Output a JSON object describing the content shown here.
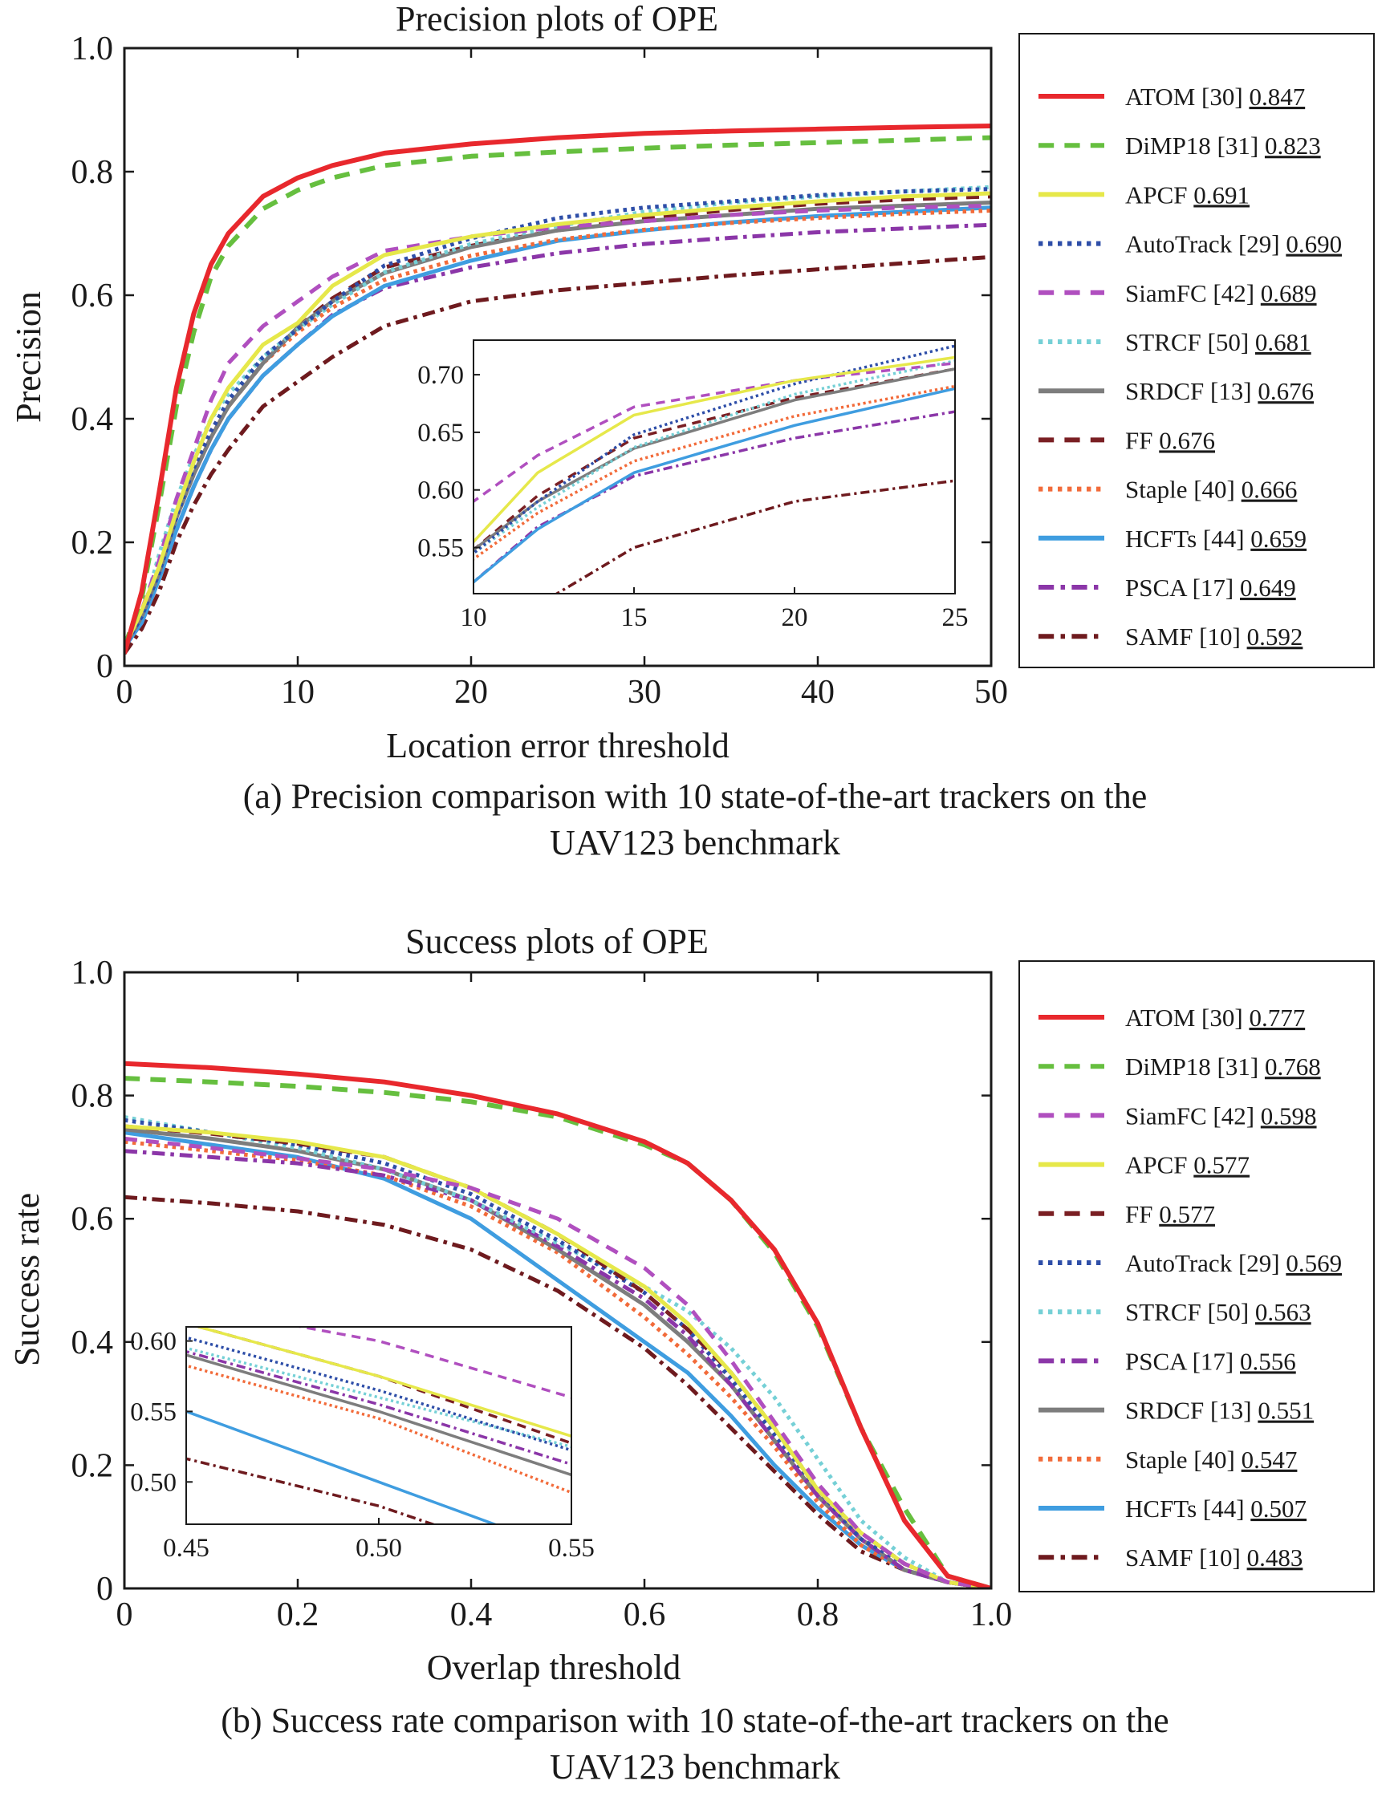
{
  "captions": [
    {
      "line1": "(a)  Precision comparison with 10 state-of-the-art trackers on the",
      "line2": "UAV123 benchmark"
    },
    {
      "line1": "(b)  Success rate comparison with 10 state-of-the-art trackers on the",
      "line2": "UAV123 benchmark"
    }
  ],
  "trackers": {
    "ATOM": {
      "color": "#e8282d",
      "dash": "solid"
    },
    "DiMP18": {
      "color": "#66bf3f",
      "dash": "dashed"
    },
    "APCF": {
      "color": "#e6e84a",
      "dash": "solid"
    },
    "AutoTrack": {
      "color": "#2e4ea8",
      "dash": "dotted"
    },
    "SiamFC": {
      "color": "#b04fbf",
      "dash": "dashed"
    },
    "STRCF": {
      "color": "#75d0d6",
      "dash": "dotted"
    },
    "SRDCF": {
      "color": "#7d7d7d",
      "dash": "solid"
    },
    "FF": {
      "color": "#7a1f23",
      "dash": "dashed"
    },
    "Staple": {
      "color": "#f26b3a",
      "dash": "dotted"
    },
    "HCFTs": {
      "color": "#3f9de0",
      "dash": "solid"
    },
    "PSCA": {
      "color": "#8b36a8",
      "dash": "dashdot"
    },
    "SAMF": {
      "color": "#6e1a1e",
      "dash": "dashdot"
    }
  },
  "chart_data": [
    {
      "type": "line",
      "title": "Precision plots of OPE",
      "xlabel": "Location error threshold",
      "ylabel": "Precision",
      "xlim": [
        0,
        50
      ],
      "ylim": [
        0,
        1.0
      ],
      "xticks": [
        "0",
        "10",
        "20",
        "30",
        "40",
        "50"
      ],
      "yticks": [
        "0",
        "0.2",
        "0.4",
        "0.6",
        "0.8",
        "1.0"
      ],
      "grid": false,
      "legend_position": "right-outside",
      "x": [
        0,
        1,
        2,
        3,
        4,
        5,
        6,
        8,
        10,
        12,
        15,
        20,
        25,
        30,
        35,
        40,
        45,
        50
      ],
      "series": [
        {
          "key": "ATOM",
          "label": "ATOM [30]",
          "score": "0.847",
          "values": [
            0.02,
            0.12,
            0.28,
            0.45,
            0.57,
            0.65,
            0.7,
            0.76,
            0.79,
            0.81,
            0.83,
            0.845,
            0.855,
            0.862,
            0.866,
            0.869,
            0.872,
            0.874
          ]
        },
        {
          "key": "DiMP18",
          "label": "DiMP18 [31]",
          "score": "0.823",
          "values": [
            0.03,
            0.11,
            0.26,
            0.42,
            0.54,
            0.63,
            0.68,
            0.74,
            0.77,
            0.79,
            0.81,
            0.825,
            0.832,
            0.838,
            0.843,
            0.847,
            0.851,
            0.855
          ]
        },
        {
          "key": "APCF",
          "label": "APCF",
          "score": "0.691",
          "values": [
            0.03,
            0.09,
            0.16,
            0.25,
            0.33,
            0.4,
            0.45,
            0.52,
            0.555,
            0.615,
            0.665,
            0.695,
            0.715,
            0.73,
            0.742,
            0.752,
            0.76,
            0.765
          ]
        },
        {
          "key": "AutoTrack",
          "label": "AutoTrack [29]",
          "score": "0.690",
          "values": [
            0.03,
            0.08,
            0.15,
            0.24,
            0.32,
            0.38,
            0.43,
            0.5,
            0.545,
            0.59,
            0.648,
            0.692,
            0.725,
            0.742,
            0.752,
            0.762,
            0.768,
            0.772
          ]
        },
        {
          "key": "SiamFC",
          "label": "SiamFC [42]",
          "score": "0.689",
          "values": [
            0.03,
            0.09,
            0.17,
            0.27,
            0.35,
            0.43,
            0.49,
            0.55,
            0.59,
            0.63,
            0.672,
            0.695,
            0.71,
            0.72,
            0.73,
            0.737,
            0.742,
            0.745
          ]
        },
        {
          "key": "STRCF",
          "label": "STRCF [50]",
          "score": "0.681",
          "values": [
            0.03,
            0.08,
            0.18,
            0.27,
            0.34,
            0.4,
            0.44,
            0.5,
            0.545,
            0.585,
            0.637,
            0.683,
            0.712,
            0.735,
            0.75,
            0.76,
            0.768,
            0.775
          ]
        },
        {
          "key": "SRDCF",
          "label": "SRDCF [13]",
          "score": "0.676",
          "values": [
            0.03,
            0.08,
            0.15,
            0.24,
            0.31,
            0.37,
            0.42,
            0.49,
            0.548,
            0.59,
            0.636,
            0.678,
            0.705,
            0.72,
            0.73,
            0.74,
            0.745,
            0.75
          ]
        },
        {
          "key": "FF",
          "label": "FF",
          "score": "0.676",
          "values": [
            0.03,
            0.08,
            0.15,
            0.24,
            0.31,
            0.37,
            0.42,
            0.49,
            0.548,
            0.595,
            0.645,
            0.68,
            0.705,
            0.725,
            0.738,
            0.748,
            0.755,
            0.76
          ]
        },
        {
          "key": "Staple",
          "label": "Staple [40]",
          "score": "0.666",
          "values": [
            0.03,
            0.08,
            0.16,
            0.25,
            0.32,
            0.38,
            0.42,
            0.49,
            0.54,
            0.58,
            0.625,
            0.664,
            0.69,
            0.706,
            0.717,
            0.725,
            0.732,
            0.737
          ]
        },
        {
          "key": "HCFTs",
          "label": "HCFTs [44]",
          "score": "0.659",
          "values": [
            0.03,
            0.07,
            0.14,
            0.22,
            0.29,
            0.35,
            0.4,
            0.47,
            0.52,
            0.566,
            0.615,
            0.656,
            0.688,
            0.705,
            0.718,
            0.728,
            0.735,
            0.742
          ]
        },
        {
          "key": "PSCA",
          "label": "PSCA [17]",
          "score": "0.649",
          "values": [
            0.03,
            0.07,
            0.14,
            0.22,
            0.29,
            0.35,
            0.4,
            0.47,
            0.52,
            0.568,
            0.612,
            0.645,
            0.668,
            0.683,
            0.693,
            0.702,
            0.708,
            0.714
          ]
        },
        {
          "key": "SAMF",
          "label": "SAMF [10]",
          "score": "0.592",
          "values": [
            0.02,
            0.06,
            0.12,
            0.2,
            0.26,
            0.31,
            0.35,
            0.42,
            0.46,
            0.5,
            0.55,
            0.59,
            0.608,
            0.62,
            0.632,
            0.642,
            0.652,
            0.662
          ]
        }
      ],
      "inset": {
        "xlim": [
          10,
          25
        ],
        "ylim": [
          0.51,
          0.73
        ],
        "xticks": [
          "10",
          "15",
          "20",
          "25"
        ],
        "yticks": [
          "0.55",
          "0.60",
          "0.65",
          "0.70"
        ]
      }
    },
    {
      "type": "line",
      "title": "Success plots of OPE",
      "xlabel": "Overlap threshold",
      "ylabel": "Success rate",
      "xlim": [
        0,
        1.0
      ],
      "ylim": [
        0,
        1.0
      ],
      "xticks": [
        "0",
        "0.2",
        "0.4",
        "0.6",
        "0.8",
        "1.0"
      ],
      "yticks": [
        "0",
        "0.2",
        "0.4",
        "0.6",
        "0.8",
        "1.0"
      ],
      "grid": false,
      "legend_position": "right-outside",
      "x": [
        0,
        0.1,
        0.2,
        0.3,
        0.4,
        0.5,
        0.6,
        0.65,
        0.7,
        0.75,
        0.8,
        0.85,
        0.9,
        0.95,
        1.0
      ],
      "series": [
        {
          "key": "ATOM",
          "label": "ATOM [30]",
          "score": "0.777",
          "values": [
            0.852,
            0.845,
            0.835,
            0.822,
            0.8,
            0.77,
            0.725,
            0.69,
            0.63,
            0.55,
            0.43,
            0.26,
            0.11,
            0.02,
            0.0
          ]
        },
        {
          "key": "DiMP18",
          "label": "DiMP18 [31]",
          "score": "0.768",
          "values": [
            0.828,
            0.822,
            0.815,
            0.805,
            0.79,
            0.765,
            0.72,
            0.69,
            0.63,
            0.545,
            0.425,
            0.26,
            0.13,
            0.02,
            0.0
          ]
        },
        {
          "key": "SiamFC",
          "label": "SiamFC [42]",
          "score": "0.598",
          "values": [
            0.73,
            0.715,
            0.698,
            0.68,
            0.65,
            0.6,
            0.52,
            0.46,
            0.37,
            0.27,
            0.17,
            0.09,
            0.04,
            0.01,
            0.0
          ]
        },
        {
          "key": "APCF",
          "label": "APCF",
          "score": "0.577",
          "values": [
            0.75,
            0.74,
            0.725,
            0.7,
            0.65,
            0.575,
            0.49,
            0.43,
            0.35,
            0.26,
            0.16,
            0.09,
            0.04,
            0.01,
            0.0
          ]
        },
        {
          "key": "FF",
          "label": "FF",
          "score": "0.577",
          "values": [
            0.75,
            0.738,
            0.722,
            0.7,
            0.65,
            0.575,
            0.48,
            0.42,
            0.35,
            0.26,
            0.16,
            0.09,
            0.04,
            0.01,
            0.0
          ]
        },
        {
          "key": "AutoTrack",
          "label": "AutoTrack [29]",
          "score": "0.569",
          "values": [
            0.76,
            0.74,
            0.72,
            0.69,
            0.64,
            0.565,
            0.48,
            0.42,
            0.34,
            0.25,
            0.16,
            0.08,
            0.04,
            0.01,
            0.0
          ]
        },
        {
          "key": "STRCF",
          "label": "STRCF [50]",
          "score": "0.563",
          "values": [
            0.765,
            0.74,
            0.715,
            0.68,
            0.63,
            0.56,
            0.49,
            0.45,
            0.39,
            0.31,
            0.21,
            0.11,
            0.05,
            0.01,
            0.0
          ]
        },
        {
          "key": "PSCA",
          "label": "PSCA [17]",
          "score": "0.556",
          "values": [
            0.71,
            0.7,
            0.69,
            0.67,
            0.63,
            0.555,
            0.47,
            0.41,
            0.33,
            0.24,
            0.15,
            0.08,
            0.03,
            0.01,
            0.0
          ]
        },
        {
          "key": "SRDCF",
          "label": "SRDCF [13]",
          "score": "0.551",
          "values": [
            0.745,
            0.73,
            0.71,
            0.68,
            0.63,
            0.55,
            0.46,
            0.4,
            0.33,
            0.24,
            0.15,
            0.08,
            0.03,
            0.01,
            0.0
          ]
        },
        {
          "key": "Staple",
          "label": "Staple [40]",
          "score": "0.547",
          "values": [
            0.725,
            0.71,
            0.695,
            0.67,
            0.62,
            0.545,
            0.44,
            0.38,
            0.31,
            0.23,
            0.14,
            0.07,
            0.03,
            0.01,
            0.0
          ]
        },
        {
          "key": "HCFTs",
          "label": "HCFTs [44]",
          "score": "0.507",
          "values": [
            0.74,
            0.72,
            0.7,
            0.665,
            0.6,
            0.5,
            0.4,
            0.35,
            0.28,
            0.2,
            0.13,
            0.07,
            0.03,
            0.01,
            0.0
          ]
        },
        {
          "key": "SAMF",
          "label": "SAMF [10]",
          "score": "0.483",
          "values": [
            0.635,
            0.625,
            0.612,
            0.59,
            0.55,
            0.483,
            0.39,
            0.33,
            0.26,
            0.19,
            0.12,
            0.06,
            0.03,
            0.01,
            0.0
          ]
        }
      ],
      "inset": {
        "xlim": [
          0.45,
          0.55
        ],
        "ylim": [
          0.47,
          0.61
        ],
        "xticks": [
          "0.45",
          "0.50",
          "0.55"
        ],
        "yticks": [
          "0.50",
          "0.55",
          "0.60"
        ]
      }
    }
  ]
}
